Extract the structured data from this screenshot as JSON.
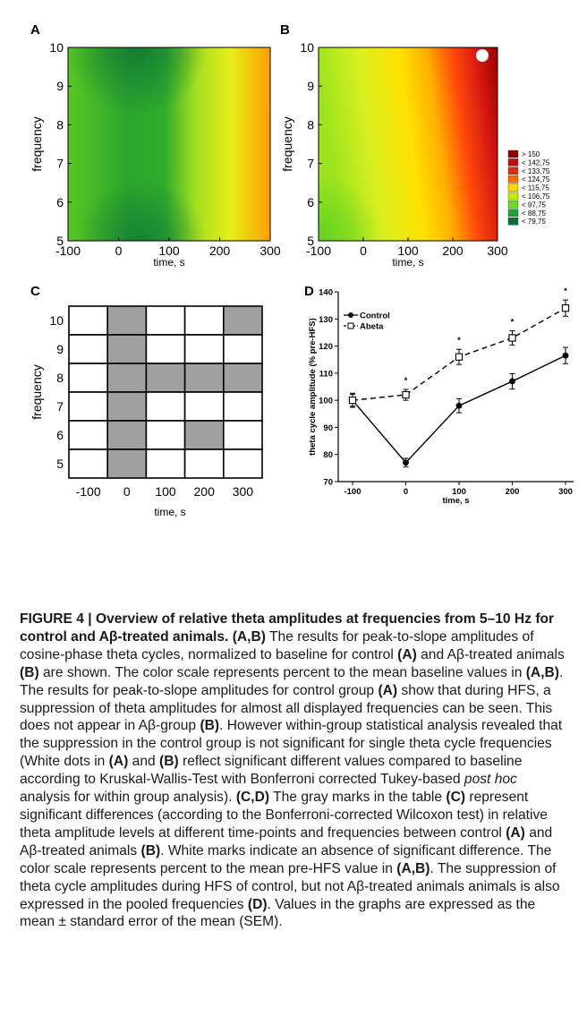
{
  "panels": {
    "A": {
      "letter": "A",
      "x_label": "time, s",
      "y_label": "frequency",
      "x_ticks": [
        "-100",
        "0",
        "100",
        "200",
        "300"
      ],
      "y_ticks": [
        "10",
        "9",
        "8",
        "7",
        "6",
        "5"
      ]
    },
    "B": {
      "letter": "B",
      "x_label": "time, s",
      "y_label": "frequency",
      "x_ticks": [
        "-100",
        "0",
        "100",
        "200",
        "300"
      ],
      "y_ticks": [
        "10",
        "9",
        "8",
        "7",
        "6",
        "5"
      ]
    },
    "C": {
      "letter": "C",
      "x_label": "time, s",
      "y_label": "frequency",
      "x_ticks": [
        "-100",
        "0",
        "100",
        "200",
        "300"
      ],
      "y_ticks": [
        "10",
        "9",
        "8",
        "7",
        "6",
        "5"
      ]
    },
    "D": {
      "letter": "D"
    }
  },
  "legend": {
    "entries": [
      "> 150",
      "< 142,75",
      "< 133,75",
      "< 124,75",
      "< 115,75",
      "< 106,75",
      "< 97,75",
      "< 88,75",
      "< 79,75"
    ],
    "colors": [
      "#8b0000",
      "#b51414",
      "#dd2a12",
      "#ff6a00",
      "#ffd800",
      "#c0f000",
      "#66dd22",
      "#22a030",
      "#0c6e3a"
    ]
  },
  "chart_data": [
    {
      "panel": "C",
      "type": "table",
      "columns": [
        "-100",
        "0",
        "100",
        "200",
        "300"
      ],
      "rows": [
        "10",
        "9",
        "8",
        "7",
        "6",
        "5"
      ],
      "significant": [
        [
          false,
          true,
          false,
          false,
          true
        ],
        [
          false,
          true,
          false,
          false,
          false
        ],
        [
          false,
          true,
          true,
          true,
          true
        ],
        [
          false,
          true,
          false,
          false,
          false
        ],
        [
          false,
          true,
          false,
          true,
          false
        ],
        [
          false,
          true,
          false,
          false,
          false
        ]
      ],
      "colors": {
        "significant": "#a0a0a0",
        "not_significant": "#ffffff"
      }
    },
    {
      "panel": "D",
      "type": "line",
      "xlabel": "time, s",
      "ylabel": "theta cycle amplitude (% pre-HFS)",
      "x": [
        -100,
        0,
        100,
        200,
        300
      ],
      "x_ticks": [
        "-100",
        "0",
        "100",
        "200",
        "300"
      ],
      "y_ticks": [
        "70",
        "80",
        "90",
        "100",
        "110",
        "120",
        "130",
        "140"
      ],
      "ylim": [
        70,
        140
      ],
      "series": [
        {
          "name": "Control",
          "values": [
            100,
            77,
            98,
            107,
            116.5
          ],
          "err": [
            2.2,
            1.6,
            2.6,
            2.8,
            3.0
          ],
          "marker": "filled-circle",
          "line": "solid"
        },
        {
          "name": "Abeta",
          "values": [
            100,
            102,
            116,
            123,
            134
          ],
          "err": [
            2.6,
            2.0,
            2.8,
            2.6,
            3.0
          ],
          "marker": "open-square",
          "line": "dashed"
        }
      ],
      "significance_labels": [
        "*",
        "*",
        "*",
        "*"
      ]
    }
  ],
  "caption": {
    "title": "FIGURE 4 | Overview of relative theta amplitudes at frequencies from 5–10 Hz for control and Aβ-treated animals.",
    "ab_label": "(A,B)",
    "t1": " The results for peak-to-slope amplitudes of cosine-phase theta cycles, normalized to baseline for control ",
    "a1": "(A)",
    "t2": " and Aβ-treated animals ",
    "b1": "(B)",
    "t3": " are shown. The color scale represents percent to the mean baseline values in ",
    "ab2": "(A,B)",
    "t4": ". The results for peak-to-slope amplitudes for control group ",
    "a2": "(A)",
    "t5": " show that during HFS, a suppression of theta amplitudes for almost all displayed frequencies can be seen. This does not appear in Aβ-group ",
    "b2": "(B)",
    "t6": ". However within-group statistical analysis revealed that the suppression in the control group is not significant for single theta cycle frequencies (White dots in ",
    "a3": "(A)",
    "t7": " and ",
    "b3": "(B)",
    "t8": " reflect significant different values compared to baseline according to Kruskal-Wallis-Test with Bonferroni corrected Tukey-based ",
    "posthoc": "post hoc",
    "t9": " analysis for within group analysis). ",
    "cd": "(C,D)",
    "t10": " The gray marks in the table ",
    "c1": "(C)",
    "t11": " represent significant differences (according to the Bonferroni-corrected Wilcoxon test) in relative theta amplitude levels at different time-points and frequencies between control ",
    "a4": "(A)",
    "t12": " and Aβ-treated animals ",
    "b4": "(B)",
    "t13": ". White marks indicate an absence of significant difference. The color scale represents percent to the mean pre-HFS value in ",
    "ab3": "(A,B)",
    "t14": ". The suppression of theta cycle amplitudes during HFS of control, but not Aβ-treated animals animals is also expressed in the pooled frequencies ",
    "d1": "(D)",
    "t15": ". Values in the graphs are expressed as the mean ± standard error of the mean (SEM)."
  }
}
